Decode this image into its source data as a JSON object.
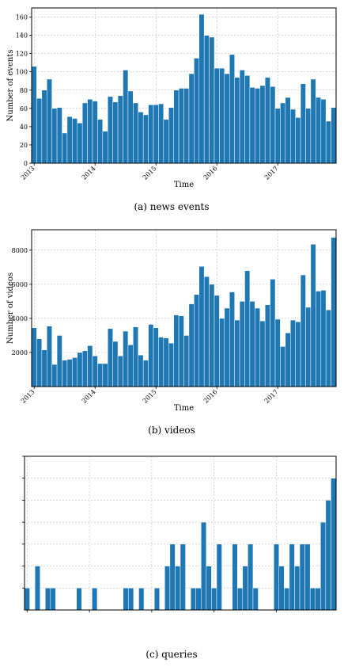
{
  "chart_data": [
    {
      "type": "bar",
      "caption": "(a)  news events",
      "xlabel": "Time",
      "ylabel": "Number of events",
      "ylim": [
        0,
        170
      ],
      "yticks": [
        0,
        20,
        40,
        60,
        80,
        100,
        120,
        140,
        160
      ],
      "year_ticks": [
        "2013",
        "2014",
        "2015",
        "2016",
        "2017"
      ],
      "grid": true,
      "start": "2013-01",
      "values": [
        106,
        71,
        80,
        92,
        60,
        61,
        33,
        51,
        49,
        44,
        66,
        70,
        68,
        48,
        35,
        73,
        67,
        74,
        102,
        79,
        66,
        56,
        53,
        64,
        64,
        65,
        48,
        61,
        80,
        82,
        82,
        98,
        115,
        163,
        140,
        138,
        104,
        104,
        98,
        119,
        94,
        102,
        96,
        83,
        82,
        85,
        94,
        84,
        60,
        66,
        72,
        59,
        50,
        87,
        60,
        92,
        72,
        70,
        46,
        61
      ]
    },
    {
      "type": "bar",
      "caption": "(b)  videos",
      "xlabel": "Time",
      "ylabel": "Number of videos",
      "ylim": [
        0,
        9200
      ],
      "yticks": [
        2000,
        4000,
        6000,
        8000
      ],
      "year_ticks": [
        "2013",
        "2014",
        "2015",
        "2016",
        "2017"
      ],
      "grid": true,
      "start": "2013-01",
      "values": [
        3450,
        2800,
        2150,
        3550,
        1300,
        3000,
        1550,
        1600,
        1700,
        2000,
        2100,
        2400,
        1800,
        1350,
        1350,
        3400,
        2650,
        1800,
        3250,
        2450,
        3500,
        1850,
        1550,
        3650,
        3450,
        2900,
        2850,
        2550,
        4200,
        4150,
        3000,
        4850,
        5400,
        7050,
        6450,
        6000,
        5350,
        4000,
        4600,
        5550,
        3900,
        5000,
        6800,
        5000,
        4600,
        3850,
        4800,
        6300,
        3950,
        2350,
        3150,
        3900,
        3800,
        6550,
        4650,
        8350,
        5600,
        5650,
        4500,
        8750
      ]
    },
    {
      "type": "bar",
      "caption": "(c)  queries",
      "xlabel": "",
      "ylabel": "",
      "ylim": [
        0,
        7
      ],
      "tick_labels_shown": false,
      "grid": true,
      "start": "2013-01",
      "values": [
        1,
        0,
        2,
        0,
        1,
        1,
        0,
        0,
        0,
        0,
        1,
        0,
        0,
        1,
        0,
        0,
        0,
        0,
        0,
        1,
        1,
        0,
        1,
        0,
        0,
        1,
        0,
        2,
        3,
        2,
        3,
        0,
        1,
        1,
        4,
        2,
        1,
        3,
        0,
        0,
        3,
        1,
        2,
        3,
        1,
        0,
        0,
        0,
        3,
        2,
        1,
        3,
        2,
        3,
        3,
        1,
        1,
        4,
        5,
        6
      ]
    }
  ]
}
